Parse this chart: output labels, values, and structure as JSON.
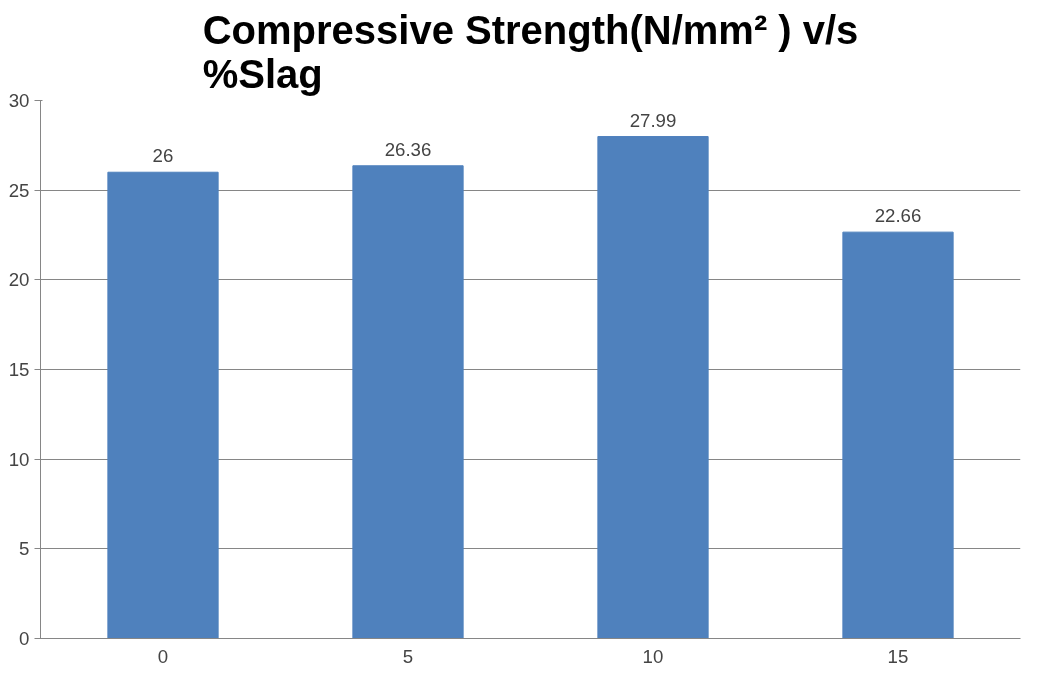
{
  "chart_data": {
    "type": "bar",
    "title": "Compressive Strength(N/mm² ) v/s %Slag",
    "categories": [
      "0",
      "5",
      "10",
      "15"
    ],
    "values": [
      26,
      26.36,
      27.99,
      22.66
    ],
    "color": "#4f81bd",
    "ylim": [
      0,
      30
    ],
    "yticks": [
      0,
      5,
      10,
      15,
      20,
      25,
      30
    ],
    "grid": "y",
    "data_labels": true
  }
}
